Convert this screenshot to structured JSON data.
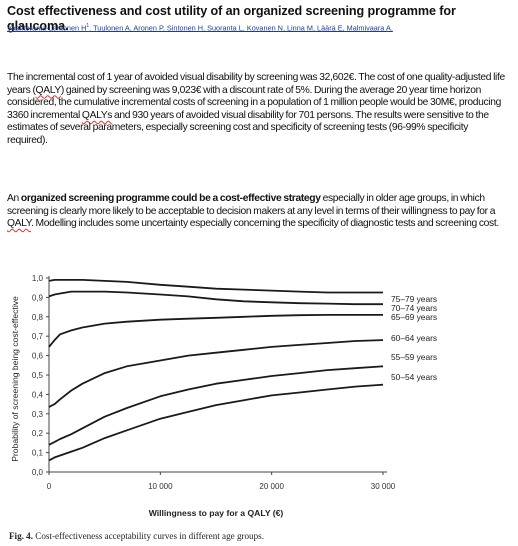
{
  "header": {
    "title": "Cost effectiveness and cost utility of an organized screening programme for glaucoma.",
    "authors": "Vaahtoranta-Lehtonen H",
    "authors_sup": "1",
    "authors_rest": ". Tuulonen A, Aronen P, Sintonen H, Suoranta L, Kovanen N, Linna M, Läärä E, Malmivaara A."
  },
  "paragraph1": {
    "s1": "The incremental cost of 1 year of avoided visual disability by screening was 32,602€. The cost of one quality-adjusted life years (",
    "qaly": "QALY",
    "s2": ") gained by screening was 9,023€ with a discount rate of 5%. During the average 20 year time horizon considered, the cumulative incremental costs of screening in a population of 1 million people would be 30M€, producing 3360 incremental ",
    "qalys": "QALYs",
    "s3": " and 930 years of avoided visual disability for 701 persons. The results were sensitive to the estimates of several parameters, especially screening cost and specificity of screening tests (96-99% specificity required)."
  },
  "paragraph2": {
    "s1": "An ",
    "bold": "organized screening programme could be a cost-effective strategy",
    "s2": " especially in older age groups, in which screening is clearly more likely to be acceptable to decision makers at any level in terms of their willingness to pay for a ",
    "qaly": "QALY",
    "s3": ". Modelling includes some uncertainty especially concerning the specificity of diagnostic tests and screening cost."
  },
  "chart_data": {
    "type": "line",
    "xlabel": "Willingness to pay for a QALY (€)",
    "ylabel": "Probability of screening being cost-effective",
    "xlim": [
      0,
      30000
    ],
    "ylim": [
      0,
      1.0
    ],
    "x_ticks": [
      "0",
      "10 000",
      "20 000",
      "30 000"
    ],
    "y_ticks": [
      "0,0",
      "0,1",
      "0,2",
      "0,3",
      "0,4",
      "0,5",
      "0,6",
      "0,7",
      "0,8",
      "0,9",
      "1,0"
    ],
    "series": [
      {
        "name": "75–79 years",
        "x": [
          0,
          500,
          1000,
          2000,
          3000,
          5000,
          7000,
          10000,
          12500,
          15000,
          17500,
          20000,
          22500,
          25000,
          27500,
          30000
        ],
        "values": [
          0.985,
          0.99,
          0.99,
          0.99,
          0.99,
          0.985,
          0.98,
          0.965,
          0.955,
          0.945,
          0.94,
          0.935,
          0.93,
          0.925,
          0.925,
          0.925
        ]
      },
      {
        "name": "70–74 years",
        "x": [
          0,
          500,
          1000,
          2000,
          3000,
          5000,
          7000,
          10000,
          12500,
          15000,
          17500,
          20000,
          22500,
          25000,
          27500,
          30000
        ],
        "values": [
          0.905,
          0.915,
          0.92,
          0.93,
          0.93,
          0.93,
          0.925,
          0.915,
          0.905,
          0.89,
          0.88,
          0.875,
          0.87,
          0.868,
          0.865,
          0.865
        ]
      },
      {
        "name": "65–69 years",
        "x": [
          0,
          500,
          1000,
          2000,
          3000,
          5000,
          7000,
          10000,
          12500,
          15000,
          17500,
          20000,
          22500,
          25000,
          27500,
          30000
        ],
        "values": [
          0.645,
          0.68,
          0.71,
          0.73,
          0.745,
          0.765,
          0.775,
          0.785,
          0.79,
          0.795,
          0.8,
          0.805,
          0.808,
          0.81,
          0.81,
          0.81
        ]
      },
      {
        "name": "60–64 years",
        "x": [
          0,
          500,
          1000,
          2000,
          3000,
          5000,
          7000,
          10000,
          12500,
          15000,
          17500,
          20000,
          22500,
          25000,
          27500,
          30000
        ],
        "values": [
          0.335,
          0.35,
          0.375,
          0.42,
          0.455,
          0.51,
          0.545,
          0.575,
          0.6,
          0.615,
          0.63,
          0.645,
          0.655,
          0.665,
          0.675,
          0.68
        ]
      },
      {
        "name": "55–59 years",
        "x": [
          0,
          500,
          1000,
          2000,
          3000,
          5000,
          7000,
          10000,
          12500,
          15000,
          17500,
          20000,
          22500,
          25000,
          27500,
          30000
        ],
        "values": [
          0.14,
          0.155,
          0.17,
          0.195,
          0.225,
          0.285,
          0.33,
          0.39,
          0.425,
          0.455,
          0.475,
          0.495,
          0.51,
          0.525,
          0.535,
          0.545
        ]
      },
      {
        "name": "50–54 years",
        "x": [
          0,
          500,
          1000,
          2000,
          3000,
          5000,
          7000,
          10000,
          12500,
          15000,
          17500,
          20000,
          22500,
          25000,
          27500,
          30000
        ],
        "values": [
          0.06,
          0.075,
          0.085,
          0.105,
          0.125,
          0.175,
          0.215,
          0.275,
          0.31,
          0.345,
          0.37,
          0.395,
          0.41,
          0.425,
          0.44,
          0.45
        ]
      }
    ]
  },
  "caption": {
    "label": "Fig. 4.",
    "text": " Cost-effectiveness acceptability curves in different age groups."
  }
}
